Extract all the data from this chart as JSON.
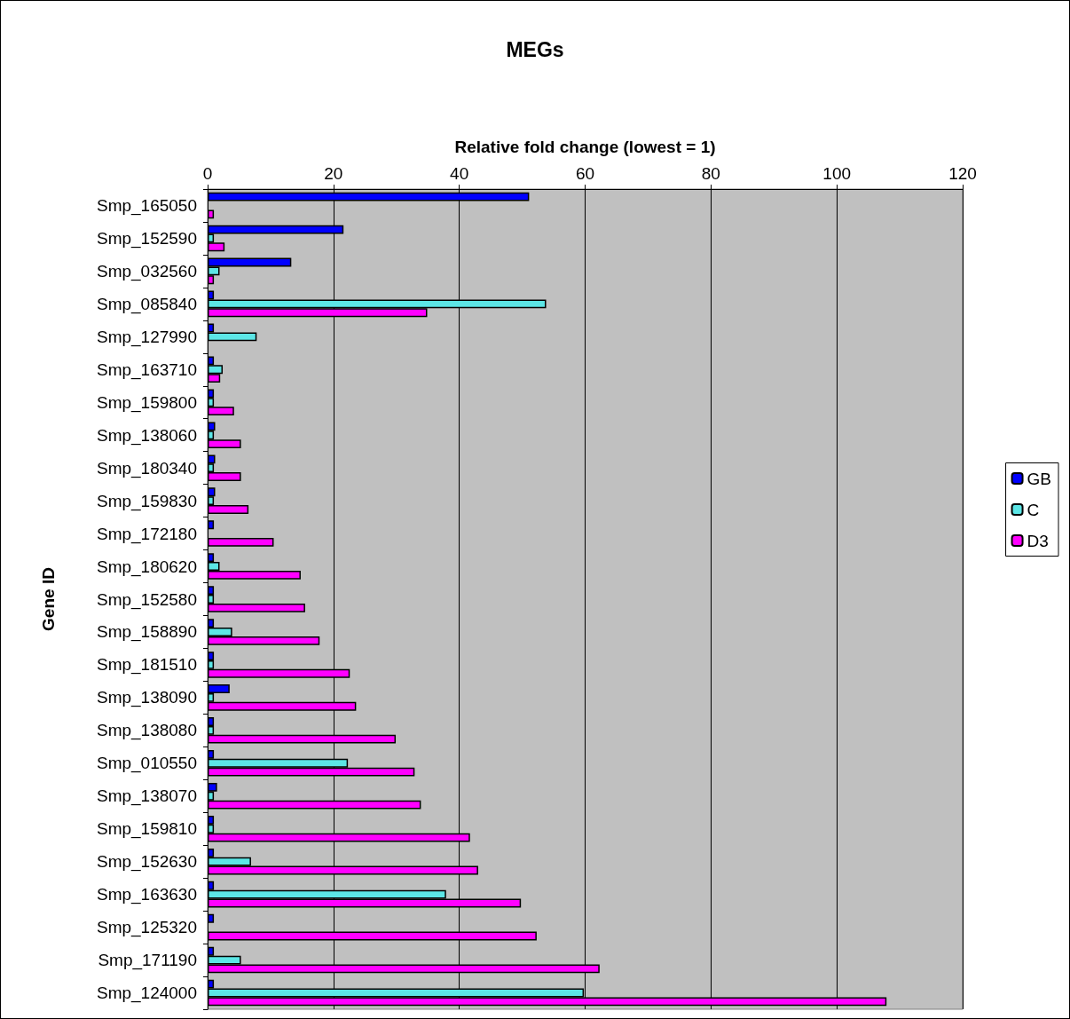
{
  "chart_data": {
    "type": "bar",
    "orientation": "horizontal",
    "title": "MEGs",
    "xlabel": "Relative fold change (lowest = 1)",
    "ylabel": "Gene ID",
    "categories": [
      "Smp_165050",
      "Smp_152590",
      "Smp_032560",
      "Smp_085840",
      "Smp_127990",
      "Smp_163710",
      "Smp_159800",
      "Smp_138060",
      "Smp_180340",
      "Smp_159830",
      "Smp_172180",
      "Smp_180620",
      "Smp_152580",
      "Smp_158890",
      "Smp_181510",
      "Smp_138090",
      "Smp_138080",
      "Smp_010550",
      "Smp_138070",
      "Smp_159810",
      "Smp_152630",
      "Smp_163630",
      "Smp_125320",
      "Smp_171190",
      "Smp_124000"
    ],
    "series": [
      {
        "name": "GB",
        "color": "#0000ff",
        "values": [
          51.1,
          21.6,
          13.3,
          1,
          1,
          1,
          1,
          1.2,
          1.2,
          1.2,
          1,
          1,
          1,
          1,
          1,
          3.5,
          1,
          1,
          1.5,
          1,
          1,
          1,
          1,
          1,
          1
        ]
      },
      {
        "name": "C",
        "color": "#5ce6e6",
        "values": [
          null,
          1,
          1.9,
          53.8,
          7.8,
          2.4,
          1,
          1,
          1,
          1,
          null,
          1.9,
          1,
          3.9,
          1,
          1,
          1,
          22.3,
          1,
          1,
          6.9,
          37.9,
          null,
          5.3,
          59.8
        ]
      },
      {
        "name": "D3",
        "color": "#ff00ff",
        "values": [
          1,
          2.7,
          1,
          34.9,
          null,
          2,
          4.2,
          5.3,
          5.3,
          6.5,
          10.5,
          14.8,
          15.5,
          17.8,
          22.6,
          23.6,
          29.9,
          32.9,
          33.9,
          41.7,
          43,
          49.8,
          52.3,
          62.3,
          107.9
        ]
      }
    ],
    "xlim": [
      0,
      120
    ],
    "xticks": [
      0,
      20,
      40,
      60,
      80,
      100,
      120
    ],
    "grid": "x",
    "legend": "right"
  }
}
